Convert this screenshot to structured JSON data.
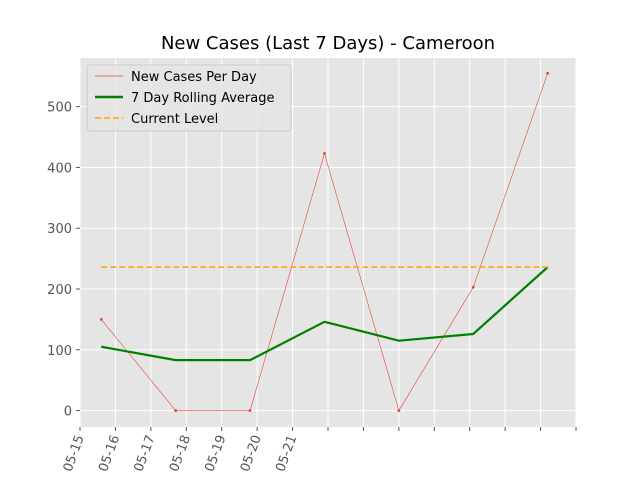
{
  "chart_data": {
    "type": "line",
    "title": "New Cases (Last 7 Days) - Cameroon",
    "xlabel": "",
    "ylabel": "",
    "x_tick_labels": [
      "05-15",
      "05-16",
      "05-17",
      "05-18",
      "05-19",
      "05-20",
      "05-21",
      "",
      "",
      "",
      "",
      "",
      "",
      "",
      ""
    ],
    "x_tick_days": [
      0,
      1,
      2,
      3,
      4,
      5,
      6,
      7,
      8,
      9,
      10,
      11,
      12,
      13,
      14
    ],
    "xlim": [
      0,
      14
    ],
    "y_ticks": [
      0,
      100,
      200,
      300,
      400,
      500
    ],
    "ylim": [
      -27,
      580
    ],
    "grid": true,
    "legend_position": "top-left",
    "series": [
      {
        "name": "New Cases Per Day",
        "style": "thin-line-with-markers",
        "color": "#e24a33",
        "x": [
          0.6,
          2.7,
          4.8,
          6.9,
          9.0,
          11.1,
          13.2
        ],
        "values": [
          150,
          0,
          0,
          423,
          0,
          203,
          555
        ]
      },
      {
        "name": "7 Day Rolling Average",
        "style": "thick-line",
        "color": "#008000",
        "x": [
          0.6,
          2.7,
          4.8,
          6.9,
          9.0,
          11.1,
          13.2
        ],
        "values": [
          105,
          83,
          83,
          146,
          115,
          126,
          236
        ]
      },
      {
        "name": "Current Level",
        "style": "dashed",
        "color": "#ffa500",
        "x": [
          0.6,
          13.2
        ],
        "values": [
          236,
          236
        ]
      }
    ],
    "colors": {
      "plot_background": "#e5e5e5",
      "grid": "#ffffff",
      "tick_text": "#555555"
    }
  }
}
